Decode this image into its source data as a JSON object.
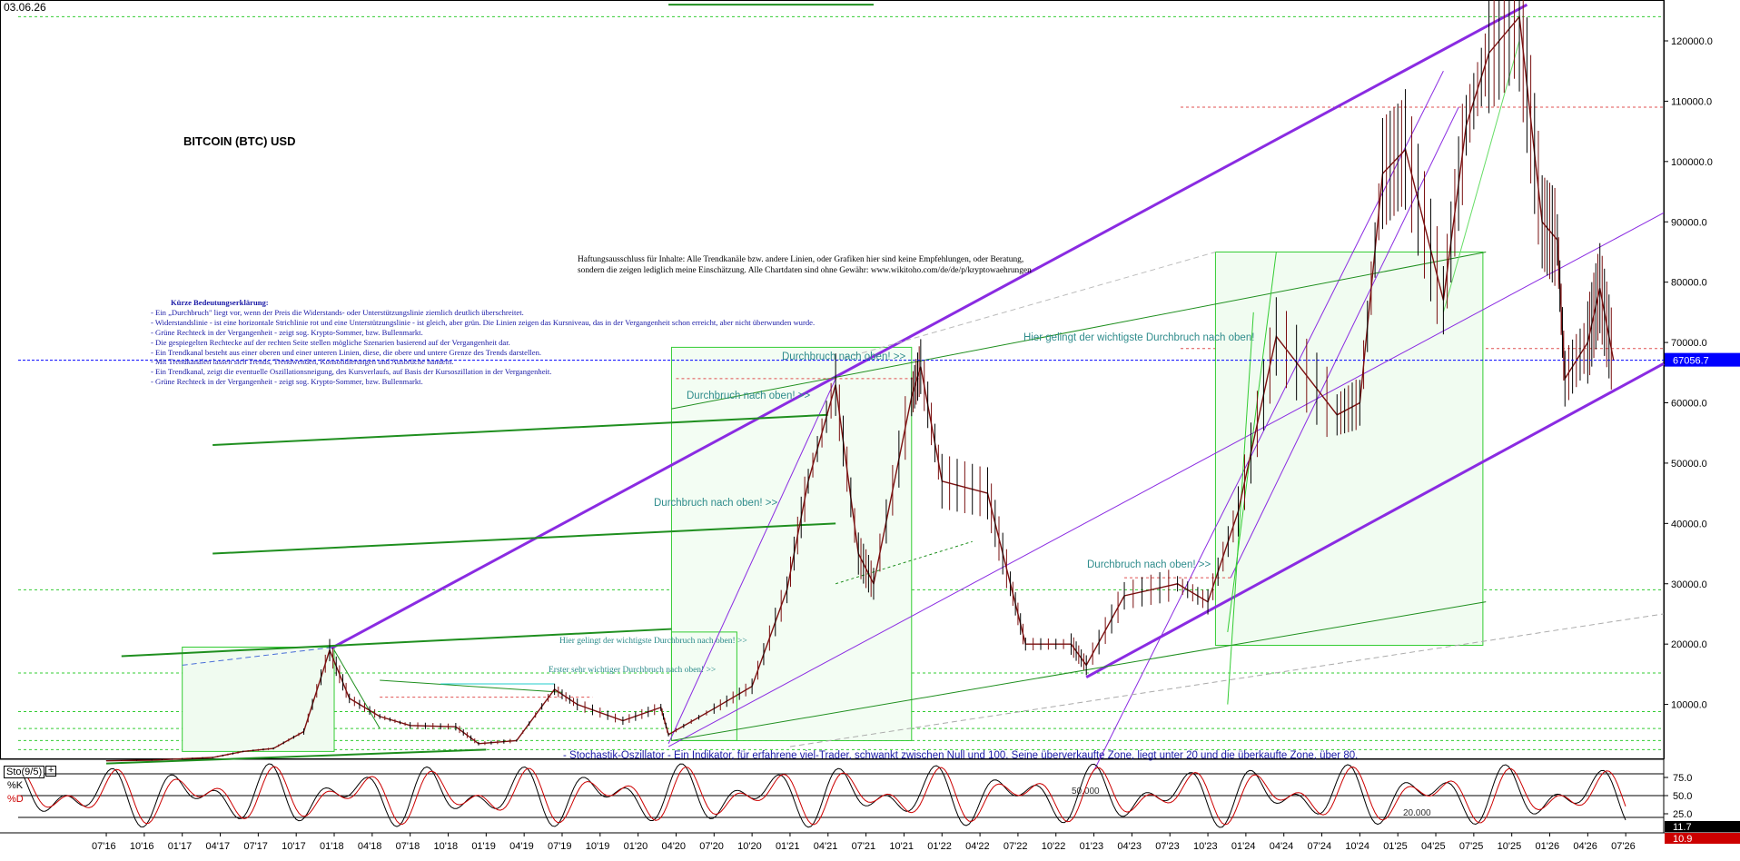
{
  "header": {
    "date": "03.06.26"
  },
  "title": "BITCOIN (BTC) USD",
  "disclaimer": [
    "Haftungsausschluss für Inhalte: Alle Trendkanäle bzw. andere Linien, oder Grafiken hier sind keine Empfehlungen, oder Beratung,",
    "sondern die zeigen lediglich meine  Einschätzung. Alle Chartdaten sind ohne Gewähr:  www.wikitoho.com/de/de/p/kryptowaehrungen"
  ],
  "legend": {
    "heading": "Kürze Bedeutungserklärung:",
    "lines": [
      "- Ein „Durchbruch\" liegt vor, wenn der Preis die Widerstands- oder Unterstützungslinie ziemlich deutlich überschreitet.",
      "- Widerstandslinie - ist eine horizontale Strichlinie rot und eine Unterstützungslinie - ist gleich, aber grün. Die Linien zeigen das Kursniveau, das in der Vergangenheit schon erreicht, aber nicht überwunden wurde.",
      "- Grüne Rechteck in der Vergangenheit - zeigt sog. Krypto-Sommer, bzw. Bullenmarkt.",
      "- Die gespiegelten Rechtecke auf der rechten Seite stellen mögliche Szenarien basierend auf der Vergangenheit dar.",
      "- Ein Trendkanal besteht aus einer oberen und einer unteren Linien, diese, die obere und untere Grenze des Trends darstellen.",
      "- Mit Trendkanälen lassen sich Trends, Trendwenden, Konsolidierungen und Ausbrüche handeln.",
      "- Ein Trendkanal, zeigt die eventuelle Oszillationsneigung, des Kursverlaufs, auf Basis der Kursoszillation in der Vergangenheit.",
      "- Grüne Rechteck in der Vergangenheit - zeigt sog. Krypto-Sommer, bzw. Bullenmarkt."
    ]
  },
  "annotations": {
    "a1": "Hier gelingt der wichtigste Durchbruch nach oben!",
    "a2": "Durchbruch nach oben! >>",
    "a3": "Durchbruch nach oben! >>",
    "a4": "Durchbruch nach oben! >>",
    "a5": "Durchbruch nach oben! >>",
    "a6": "Hier gelingt der wichtigste Durchbruch nach oben! >>",
    "a7": "Erster sehr wichtiger Durchbruch nach oben! >>"
  },
  "stochastic_note": "- Stochastik-Oszillator - Ein Indikator, für erfahrene viel-Trader, schwankt zwischen Null und 100. Seine überverkaufte Zone, liegt unter 20 und die überkaufte Zone, über 80.",
  "oscillator": {
    "name": "Sto(9/5)",
    "plus": "+",
    "k_label": "%K",
    "d_label": "%D",
    "level_50_label": "50.000",
    "level_20_label": "20.000",
    "badge_k": "11.7",
    "badge_d": "10.9",
    "k_color": "#000000",
    "d_color": "#cc0000"
  },
  "colors": {
    "channel": "#8a2be2",
    "trend_green": "#1f8f1f",
    "box_green": "#33cc33",
    "candle_up": "#7a1010",
    "candle_down": "#000000",
    "current_line": "#0000ff",
    "price_badge": "#0000ff"
  },
  "chart_data": {
    "type": "line",
    "title": "BITCOIN (BTC) USD",
    "series": [
      {
        "values": [
          [
            2016.5,
            650
          ],
          [
            2016.8,
            750
          ],
          [
            2017.0,
            1000
          ],
          [
            2017.2,
            1200
          ],
          [
            2017.4,
            2200
          ],
          [
            2017.6,
            2700
          ],
          [
            2017.8,
            5500
          ],
          [
            2017.97,
            19000
          ],
          [
            2018.1,
            11000
          ],
          [
            2018.3,
            8000
          ],
          [
            2018.5,
            6500
          ],
          [
            2018.8,
            6300
          ],
          [
            2018.95,
            3500
          ],
          [
            2019.2,
            4000
          ],
          [
            2019.45,
            12500
          ],
          [
            2019.6,
            10000
          ],
          [
            2019.9,
            7300
          ],
          [
            2020.15,
            9500
          ],
          [
            2020.2,
            5000
          ],
          [
            2020.5,
            9300
          ],
          [
            2020.75,
            13000
          ],
          [
            2020.98,
            29000
          ],
          [
            2021.12,
            47000
          ],
          [
            2021.3,
            63000
          ],
          [
            2021.45,
            35000
          ],
          [
            2021.55,
            30000
          ],
          [
            2021.8,
            61000
          ],
          [
            2021.86,
            66000
          ],
          [
            2022.0,
            47000
          ],
          [
            2022.3,
            45000
          ],
          [
            2022.45,
            30000
          ],
          [
            2022.55,
            20000
          ],
          [
            2022.85,
            20000
          ],
          [
            2022.95,
            16500
          ],
          [
            2023.2,
            28000
          ],
          [
            2023.55,
            30000
          ],
          [
            2023.75,
            27000
          ],
          [
            2023.95,
            42000
          ],
          [
            2024.2,
            71000
          ],
          [
            2024.6,
            58000
          ],
          [
            2024.75,
            60000
          ],
          [
            2024.9,
            98000
          ],
          [
            2025.05,
            102000
          ],
          [
            2025.3,
            77000
          ],
          [
            2025.45,
            106000
          ],
          [
            2025.6,
            118000
          ],
          [
            2025.8,
            124000
          ],
          [
            2025.95,
            90000
          ],
          [
            2026.05,
            87000
          ],
          [
            2026.1,
            64000
          ],
          [
            2026.25,
            70000
          ],
          [
            2026.33,
            79000
          ],
          [
            2026.42,
            67000
          ]
        ]
      }
    ],
    "last_price": 67056.7,
    "ylim": [
      0,
      125000
    ],
    "yticks": [
      10000,
      20000,
      30000,
      40000,
      50000,
      60000,
      70000,
      80000,
      90000,
      100000,
      110000,
      120000
    ],
    "ytick_labels": [
      "10000.0",
      "20000.0",
      "30000.0",
      "40000.0",
      "50000.0",
      "60000.0",
      "70000.0",
      "80000.0",
      "90000.0",
      "100000.0",
      "110000.0",
      "120000.0"
    ],
    "last_price_label": "67056.7",
    "xlabels": [
      "07'16",
      "10'16",
      "01'17",
      "04'17",
      "07'17",
      "10'17",
      "01'18",
      "04'18",
      "07'18",
      "10'18",
      "01'19",
      "04'19",
      "07'19",
      "10'19",
      "01'20",
      "04'20",
      "07'20",
      "10'20",
      "01'21",
      "04'21",
      "07'21",
      "10'21",
      "01'22",
      "04'22",
      "07'22",
      "10'22",
      "01'23",
      "04'23",
      "07'23",
      "10'23",
      "01'24",
      "04'24",
      "07'24",
      "10'24",
      "01'25",
      "04'25",
      "07'25",
      "10'25",
      "01'26",
      "04'26",
      "07'26"
    ],
    "oscillator_ticks": [
      "75.0",
      "50.0",
      "25.0"
    ],
    "grid": false
  }
}
